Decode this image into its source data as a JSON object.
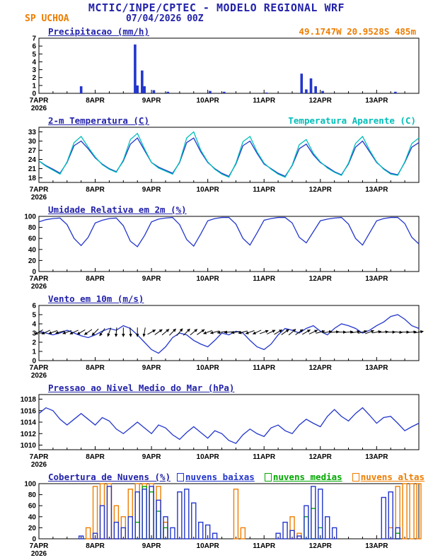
{
  "header": {
    "title": "MCTIC/INPE/CPTEC - MODELO REGIONAL WRF",
    "station": "SP UCHOA",
    "run": "07/04/2026 00Z",
    "location": "49.1747W 20.9528S 485m"
  },
  "colors": {
    "title_blue": "#2323aa",
    "series_blue": "#2336cc",
    "cyan": "#00bfba",
    "orange": "#ee7d00",
    "green": "#00a800",
    "black": "#000000"
  },
  "x_axis": {
    "day_labels": [
      "7APR",
      "8APR",
      "9APR",
      "10APR",
      "11APR",
      "12APR",
      "13APR"
    ],
    "year_label": "2026",
    "hours_total": 162,
    "hours_per_day": 24
  },
  "chart_data": [
    {
      "id": "precipitation",
      "type": "bar",
      "title": "Precipitacao (mm/h)",
      "ylabel": "mm/h",
      "ylim": [
        0,
        7
      ],
      "yticks": [
        0,
        1,
        2,
        3,
        4,
        5,
        6,
        7
      ],
      "color": "series_blue",
      "points": [
        {
          "t": 18,
          "v": 0.9
        },
        {
          "t": 41,
          "v": 6.2
        },
        {
          "t": 42,
          "v": 1.0
        },
        {
          "t": 44,
          "v": 2.9
        },
        {
          "t": 45,
          "v": 0.9
        },
        {
          "t": 49,
          "v": 0.4
        },
        {
          "t": 55,
          "v": 0.2
        },
        {
          "t": 73,
          "v": 0.3
        },
        {
          "t": 79,
          "v": 0.2
        },
        {
          "t": 97,
          "v": 0.1
        },
        {
          "t": 112,
          "v": 2.5
        },
        {
          "t": 114,
          "v": 0.5
        },
        {
          "t": 116,
          "v": 1.9
        },
        {
          "t": 118,
          "v": 0.9
        },
        {
          "t": 121,
          "v": 0.3
        },
        {
          "t": 152,
          "v": 0.2
        }
      ]
    },
    {
      "id": "temperature",
      "type": "line",
      "title": "2-m Temperatura (C)",
      "right_label": "Temperatura Aparente (C)",
      "ylim": [
        16.5,
        34.5
      ],
      "yticks": [
        18,
        21,
        24,
        27,
        30,
        33
      ],
      "dt_hours": 3,
      "series": [
        {
          "name": "2-m Temperatura (C)",
          "color": "series_blue",
          "values": [
            23.5,
            22.0,
            20.8,
            19.5,
            23.0,
            28.5,
            30.0,
            27.5,
            24.5,
            22.5,
            21.0,
            20.0,
            23.5,
            29.0,
            31.0,
            27.0,
            23.0,
            21.5,
            20.5,
            19.5,
            23.0,
            29.5,
            31.0,
            26.5,
            23.0,
            21.0,
            19.5,
            18.5,
            22.5,
            28.5,
            30.0,
            26.0,
            22.5,
            21.0,
            19.5,
            18.5,
            22.0,
            27.5,
            29.0,
            25.5,
            23.0,
            21.5,
            20.0,
            19.0,
            22.5,
            28.0,
            30.0,
            26.5,
            23.0,
            21.0,
            19.5,
            19.0,
            23.0,
            28.0,
            29.5
          ]
        },
        {
          "name": "Temperatura Aparente (C)",
          "color": "cyan",
          "values": [
            23.5,
            21.8,
            20.5,
            19.2,
            23.2,
            29.5,
            31.5,
            28.0,
            24.8,
            22.3,
            20.8,
            19.8,
            23.8,
            30.5,
            32.5,
            27.5,
            23.0,
            21.2,
            20.2,
            19.2,
            23.2,
            31.0,
            33.0,
            27.0,
            23.2,
            20.8,
            19.2,
            18.2,
            22.8,
            29.8,
            31.5,
            26.5,
            22.8,
            20.8,
            19.2,
            18.2,
            22.2,
            28.8,
            30.5,
            26.0,
            23.2,
            21.2,
            19.8,
            18.8,
            22.8,
            29.2,
            31.5,
            27.0,
            23.2,
            20.8,
            19.2,
            18.8,
            23.2,
            29.2,
            31.0
          ]
        }
      ]
    },
    {
      "id": "humidity",
      "type": "line",
      "title": "Umidade Relativa em 2m (%)",
      "ylim": [
        0,
        100
      ],
      "yticks": [
        0,
        20,
        40,
        60,
        80,
        100
      ],
      "dt_hours": 3,
      "series": [
        {
          "name": "Umidade Relativa em 2m (%)",
          "color": "series_blue",
          "values": [
            90,
            94,
            96,
            97,
            85,
            60,
            47,
            62,
            88,
            93,
            96,
            97,
            83,
            55,
            45,
            65,
            90,
            95,
            97,
            98,
            85,
            58,
            46,
            68,
            92,
            96,
            98,
            98,
            86,
            60,
            48,
            70,
            93,
            96,
            98,
            98,
            88,
            62,
            52,
            72,
            92,
            95,
            97,
            98,
            86,
            60,
            48,
            70,
            92,
            96,
            98,
            98,
            87,
            62,
            50
          ]
        }
      ]
    },
    {
      "id": "wind",
      "type": "wind",
      "title": "Vento em 10m (m/s)",
      "ylim": [
        0,
        6
      ],
      "yticks": [
        0,
        1,
        2,
        3,
        4,
        5,
        6
      ],
      "dt_hours": 3,
      "color": "series_blue",
      "arrow_anchor_value": 3.1,
      "speed": [
        3.2,
        3.0,
        2.8,
        3.0,
        3.3,
        3.0,
        2.7,
        2.5,
        2.8,
        3.2,
        3.5,
        3.3,
        3.8,
        3.5,
        2.8,
        2.0,
        1.2,
        0.8,
        1.5,
        2.5,
        3.0,
        2.8,
        2.2,
        1.8,
        1.5,
        2.2,
        3.0,
        2.8,
        3.2,
        3.0,
        2.2,
        1.5,
        1.2,
        1.8,
        2.8,
        3.5,
        3.3,
        3.0,
        3.5,
        3.8,
        3.2,
        2.8,
        3.5,
        4.0,
        3.8,
        3.5,
        3.0,
        3.3,
        3.8,
        4.2,
        4.8,
        5.0,
        4.5,
        3.8,
        3.5
      ],
      "direction_deg": [
        240,
        245,
        250,
        255,
        250,
        245,
        240,
        235,
        225,
        215,
        200,
        185,
        180,
        175,
        180,
        190,
        60,
        55,
        50,
        45,
        40,
        45,
        50,
        55,
        250,
        255,
        260,
        265,
        260,
        255,
        250,
        245,
        70,
        65,
        60,
        55,
        50,
        55,
        60,
        65,
        75,
        80,
        85,
        90,
        85,
        80,
        75,
        70,
        80,
        85,
        90,
        95,
        90,
        85,
        80
      ]
    },
    {
      "id": "pressure",
      "type": "line",
      "title": "Pressao ao Nivel Medio do Mar (hPa)",
      "ylim": [
        1009.2,
        1018.8
      ],
      "yticks": [
        1010,
        1012,
        1014,
        1016,
        1018
      ],
      "dt_hours": 3,
      "series": [
        {
          "name": "Pressao ao Nivel Medio do Mar (hPa)",
          "color": "series_blue",
          "values": [
            1015.5,
            1016.5,
            1016.0,
            1014.5,
            1013.5,
            1014.5,
            1015.5,
            1014.5,
            1013.5,
            1014.8,
            1014.2,
            1012.8,
            1012.0,
            1013.0,
            1014.0,
            1013.0,
            1012.0,
            1013.5,
            1013.0,
            1011.8,
            1011.0,
            1012.2,
            1013.2,
            1012.2,
            1011.2,
            1012.5,
            1012.0,
            1010.8,
            1010.3,
            1011.8,
            1012.8,
            1012.0,
            1011.5,
            1013.0,
            1013.5,
            1012.5,
            1012.0,
            1013.5,
            1014.5,
            1013.8,
            1013.2,
            1015.0,
            1016.2,
            1015.0,
            1014.2,
            1015.5,
            1016.5,
            1015.2,
            1013.8,
            1014.8,
            1015.0,
            1013.8,
            1012.5,
            1013.2,
            1013.8
          ]
        }
      ]
    },
    {
      "id": "clouds",
      "type": "cloud-bars",
      "title": "Cobertura de Nuvens (%)",
      "ylim": [
        0,
        100
      ],
      "yticks": [
        0,
        20,
        40,
        60,
        80,
        100
      ],
      "dt_hours": 3,
      "series": [
        {
          "name": "nuvens baixas",
          "color": "series_blue",
          "values": [
            0,
            0,
            0,
            0,
            0,
            0,
            5,
            0,
            10,
            60,
            95,
            30,
            20,
            40,
            85,
            90,
            95,
            70,
            40,
            20,
            85,
            90,
            65,
            30,
            25,
            10,
            0,
            0,
            0,
            0,
            0,
            0,
            0,
            0,
            10,
            30,
            15,
            5,
            60,
            95,
            90,
            40,
            20,
            0,
            0,
            0,
            0,
            0,
            0,
            75,
            85,
            20,
            0,
            0,
            0
          ]
        },
        {
          "name": "nuvens medias",
          "color": "green",
          "values": [
            0,
            0,
            0,
            0,
            0,
            0,
            0,
            0,
            0,
            0,
            0,
            0,
            0,
            0,
            30,
            95,
            85,
            50,
            20,
            0,
            0,
            0,
            0,
            0,
            0,
            0,
            0,
            0,
            0,
            0,
            0,
            0,
            0,
            0,
            0,
            0,
            0,
            0,
            40,
            55,
            20,
            0,
            0,
            0,
            0,
            0,
            0,
            0,
            0,
            0,
            0,
            10,
            0,
            0,
            0
          ]
        },
        {
          "name": "nuvens altas",
          "color": "orange",
          "values": [
            0,
            0,
            0,
            0,
            0,
            0,
            0,
            20,
            95,
            100,
            100,
            60,
            40,
            90,
            100,
            100,
            100,
            95,
            30,
            0,
            0,
            0,
            0,
            0,
            0,
            0,
            0,
            0,
            90,
            20,
            0,
            0,
            0,
            0,
            0,
            0,
            40,
            10,
            0,
            0,
            0,
            0,
            0,
            0,
            0,
            0,
            0,
            0,
            0,
            0,
            20,
            95,
            100,
            100,
            100
          ]
        }
      ]
    }
  ]
}
